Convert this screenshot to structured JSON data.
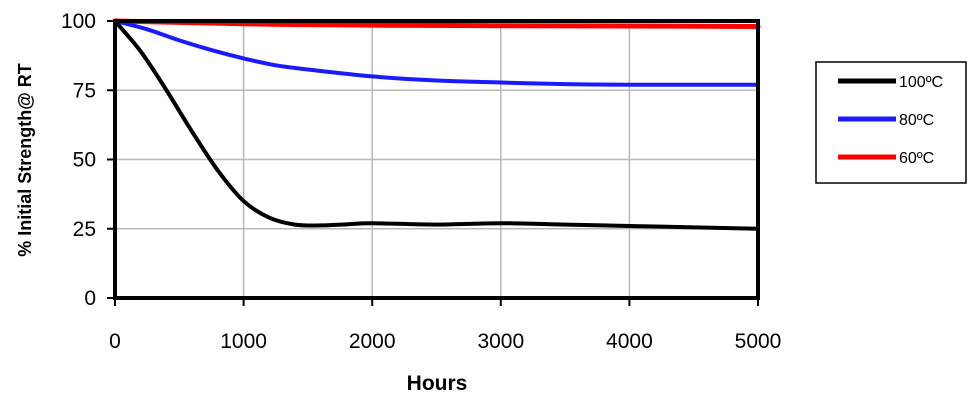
{
  "chart_data": {
    "type": "line",
    "title": "",
    "xlabel": "Hours",
    "ylabel": "% Initial Strength@ RT",
    "xlim": [
      0,
      5000
    ],
    "ylim": [
      0,
      100
    ],
    "xticks": [
      0,
      1000,
      2000,
      3000,
      4000,
      5000
    ],
    "yticks": [
      0,
      25,
      50,
      75,
      100
    ],
    "grid": true,
    "legend_position": "right",
    "series": [
      {
        "name": "100ºC",
        "color": "#000000",
        "x": [
          0,
          200,
          400,
          600,
          800,
          1000,
          1200,
          1400,
          1600,
          1800,
          2000,
          2500,
          3000,
          3500,
          4000,
          4500,
          5000
        ],
        "y": [
          100,
          89,
          75,
          60,
          46,
          35,
          29,
          26.5,
          26.2,
          26.6,
          27,
          26.5,
          27,
          26.5,
          26,
          25.5,
          25
        ]
      },
      {
        "name": "80ºC",
        "color": "#1a1aff",
        "x": [
          0,
          250,
          500,
          750,
          1000,
          1250,
          1500,
          2000,
          2500,
          3000,
          3500,
          4000,
          4500,
          5000
        ],
        "y": [
          100,
          97,
          93,
          89.5,
          86.5,
          84,
          82.5,
          80,
          78.5,
          77.8,
          77.2,
          77,
          77,
          77
        ]
      },
      {
        "name": "60ºC",
        "color": "#ff0000",
        "x": [
          0,
          500,
          1000,
          1500,
          2000,
          3000,
          4000,
          5000
        ],
        "y": [
          100,
          99.5,
          99,
          98.7,
          98.5,
          98.3,
          98.2,
          98
        ]
      }
    ]
  }
}
